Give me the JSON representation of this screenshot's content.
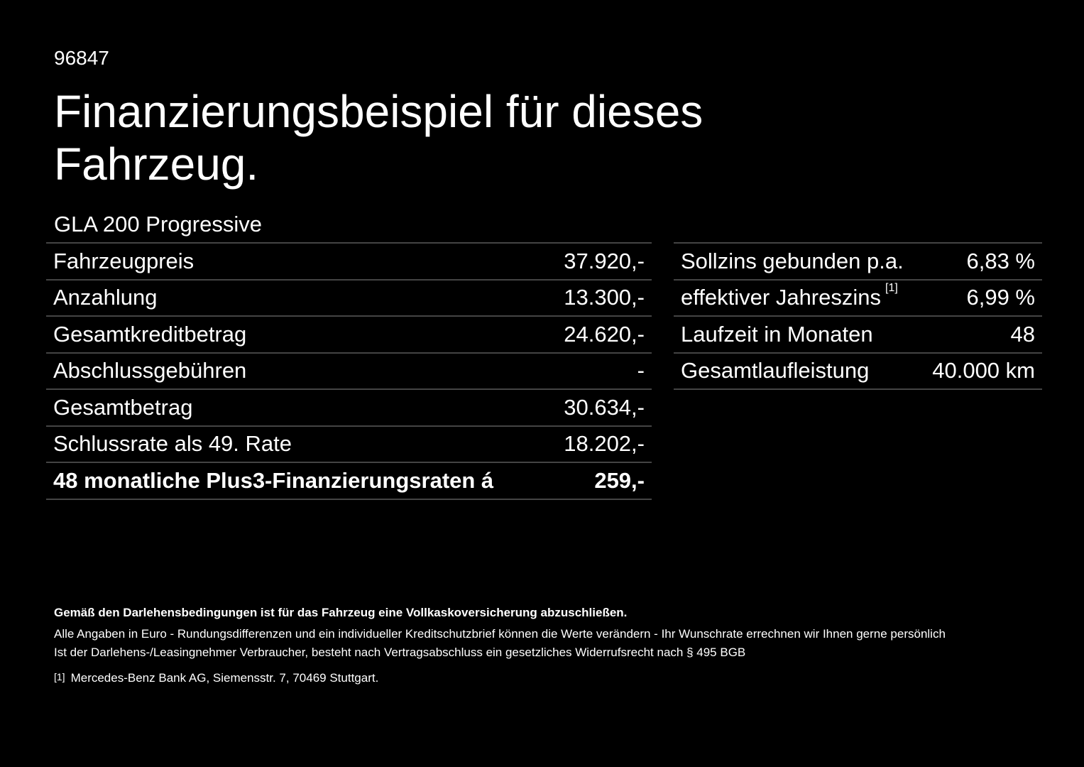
{
  "header": {
    "id": "96847",
    "title_line1": "Finanzierungsbeispiel für dieses",
    "title_line2": "Fahrzeug."
  },
  "model": "GLA 200 Progressive",
  "left_table": {
    "rows": [
      [
        "Fahrzeugpreis",
        "37.920,-"
      ],
      [
        "Anzahlung",
        "13.300,-"
      ],
      [
        "Gesamtkreditbetrag",
        "24.620,-"
      ],
      [
        "Abschlussgebühren",
        "-"
      ],
      [
        "Gesamtbetrag",
        "30.634,-"
      ],
      [
        "Schlussrate als 49. Rate",
        "18.202,-"
      ],
      [
        "48 monatliche Plus3-Finanzierungsraten á",
        "259,-"
      ]
    ]
  },
  "right_table": {
    "rows": [
      [
        "Sollzins gebunden p.a.",
        "6,83 %"
      ],
      [
        "effektiver Jahreszins",
        "6,99 %"
      ],
      [
        "Laufzeit in Monaten",
        "48"
      ],
      [
        "Gesamtlaufleistung",
        "40.000 km"
      ]
    ],
    "footnote_ref": "[1]"
  },
  "footer": {
    "bold": "Gemäß den Darlehensbedingungen ist für das Fahrzeug eine Vollkaskoversicherung abzuschließen.",
    "line1": "Alle Angaben in Euro - Rundungsdifferenzen und ein individueller Kreditschutzbrief können die Werte verändern - Ihr Wunschrate errechnen wir Ihnen gerne persönlich",
    "line2": "Ist der Darlehens-/Leasingnehmer Verbraucher, besteht nach Vertragsabschluss ein gesetzliches Widerrufsrecht nach § 495 BGB",
    "note_ref": "[1]",
    "note": "Mercedes-Benz Bank AG, Siemensstr. 7, 70469 Stuttgart."
  }
}
